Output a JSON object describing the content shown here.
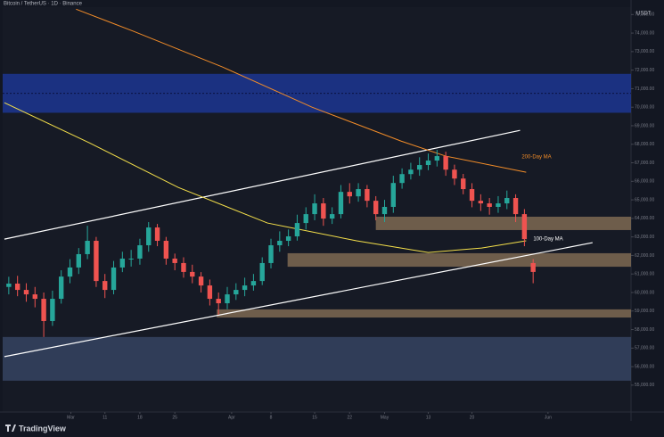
{
  "chart_data": {
    "type": "candlestick",
    "title": "Bitcoin / TetherUS · 1D · Binance",
    "corner_label": "USDT",
    "brand": "TradingView",
    "up_color": "#26a69a",
    "down_color": "#ef5350",
    "x": [
      0,
      1,
      2,
      3,
      4,
      5,
      6,
      7,
      8,
      9,
      10,
      11,
      12,
      13,
      14,
      15,
      16,
      17,
      18,
      19,
      20,
      21,
      22,
      23,
      24,
      25,
      26,
      27,
      28,
      29,
      30,
      31,
      32,
      33,
      34,
      35,
      36,
      37,
      38,
      39,
      40,
      41,
      42,
      43,
      44,
      45,
      46,
      47,
      48,
      49,
      50,
      51,
      52,
      53,
      54,
      55,
      56,
      57,
      58,
      59,
      60
    ],
    "open": [
      60300,
      60480,
      60140,
      59900,
      59660,
      58460,
      59660,
      60860,
      61350,
      62070,
      62790,
      60620,
      60140,
      61350,
      61830,
      61830,
      62550,
      63510,
      62790,
      61830,
      61590,
      61110,
      60860,
      60380,
      59660,
      59420,
      59900,
      60140,
      60380,
      60620,
      61590,
      62550,
      62790,
      63030,
      63750,
      64230,
      64810,
      63990,
      64230,
      65430,
      65190,
      65580,
      64950,
      64230,
      64620,
      65910,
      66390,
      66630,
      66880,
      67120,
      67360,
      66630,
      66150,
      65580,
      64950,
      64810,
      64620,
      64810,
      65100,
      64230,
      61590
    ],
    "high": [
      60850,
      60900,
      60500,
      60300,
      60000,
      60100,
      61200,
      61800,
      62400,
      63600,
      63000,
      61000,
      61700,
      62200,
      62300,
      62900,
      63800,
      63700,
      63000,
      62100,
      61900,
      61500,
      61100,
      60700,
      60000,
      60300,
      60500,
      60800,
      61000,
      61900,
      62900,
      63300,
      63400,
      64200,
      64600,
      65300,
      65100,
      64600,
      65800,
      65900,
      65900,
      65800,
      65200,
      65000,
      66300,
      66700,
      67000,
      67300,
      67500,
      67700,
      67600,
      66900,
      66400,
      65900,
      65300,
      65100,
      65200,
      65500,
      65300,
      64500,
      61800
    ],
    "low": [
      59900,
      59800,
      59500,
      59200,
      57600,
      58200,
      59400,
      60500,
      61000,
      61800,
      60300,
      59700,
      59900,
      61100,
      61400,
      61500,
      62200,
      62500,
      61500,
      61200,
      60800,
      60500,
      60000,
      59300,
      58800,
      59100,
      59600,
      59800,
      60100,
      60400,
      61300,
      62200,
      62500,
      62800,
      63400,
      63900,
      63600,
      63700,
      64000,
      64800,
      64900,
      64600,
      63900,
      63800,
      64300,
      65600,
      66100,
      66300,
      66600,
      66800,
      66300,
      65800,
      65300,
      64600,
      64400,
      64200,
      64300,
      64500,
      63800,
      62500,
      60500
    ],
    "close": [
      60480,
      60140,
      59900,
      59660,
      58460,
      59660,
      60860,
      61350,
      62070,
      62790,
      60620,
      60140,
      61350,
      61830,
      61830,
      62550,
      63510,
      62790,
      61830,
      61590,
      61110,
      60860,
      60380,
      59660,
      59420,
      59900,
      60140,
      60380,
      60620,
      61590,
      62550,
      62790,
      63030,
      63750,
      64230,
      64810,
      63990,
      64230,
      65430,
      65190,
      65580,
      64950,
      64230,
      64620,
      65910,
      66390,
      66630,
      66880,
      67120,
      67360,
      66630,
      66150,
      65580,
      64950,
      64810,
      64620,
      64810,
      65100,
      64230,
      62880,
      61110
    ],
    "xlim": [
      -0.7,
      71.2
    ],
    "xticks": [
      {
        "value": 7.1,
        "label": "Mar"
      },
      {
        "value": 11,
        "label": "11"
      },
      {
        "value": 15,
        "label": "18"
      },
      {
        "value": 19,
        "label": "25"
      },
      {
        "value": 25.5,
        "label": "Apr"
      },
      {
        "value": 30,
        "label": "8"
      },
      {
        "value": 35,
        "label": "15"
      },
      {
        "value": 39,
        "label": "22"
      },
      {
        "value": 43,
        "label": "May"
      },
      {
        "value": 48,
        "label": "13"
      },
      {
        "value": 53,
        "label": "20"
      },
      {
        "value": 61.7,
        "label": "Jun"
      }
    ],
    "ylim": [
      53550,
      75400
    ],
    "yticks": [
      {
        "value": 55000,
        "label": "55,000.00"
      },
      {
        "value": 56000,
        "label": "56,000.00"
      },
      {
        "value": 57000,
        "label": "57,000.00"
      },
      {
        "value": 58000,
        "label": "58,000.00"
      },
      {
        "value": 59000,
        "label": "59,000.00"
      },
      {
        "value": 60000,
        "label": "60,000.00"
      },
      {
        "value": 61000,
        "label": "61,000.00"
      },
      {
        "value": 62000,
        "label": "62,000.00"
      },
      {
        "value": 63000,
        "label": "63,000.00"
      },
      {
        "value": 64000,
        "label": "64,000.00"
      },
      {
        "value": 65000,
        "label": "65,000.00"
      },
      {
        "value": 66000,
        "label": "66,000.00"
      },
      {
        "value": 67000,
        "label": "67,000.00"
      },
      {
        "value": 68000,
        "label": "68,000.00"
      },
      {
        "value": 69000,
        "label": "69,000.00"
      },
      {
        "value": 70000,
        "label": "70,000.00"
      },
      {
        "value": 71000,
        "label": "71,000.00"
      },
      {
        "value": 72000,
        "label": "72,000.00"
      },
      {
        "value": 73000,
        "label": "73,000.00"
      },
      {
        "value": 74000,
        "label": "74,000.00"
      },
      {
        "value": 75000,
        "label": "75,000.00"
      }
    ],
    "zones": [
      {
        "color": "#1e3aa0",
        "x_start": -0.7,
        "low": 69700,
        "high": 71800
      },
      {
        "color": "#8c7458",
        "x_start": 42,
        "low": 63370,
        "high": 64090
      },
      {
        "color": "#8c7458",
        "x_start": 31.9,
        "low": 61390,
        "high": 62120
      },
      {
        "color": "#8c7458",
        "x_start": 23.8,
        "low": 58650,
        "high": 59090
      },
      {
        "color": "#3a4a6a",
        "x_start": -0.7,
        "low": 55240,
        "high": 57600
      }
    ],
    "channel_lines": [
      {
        "color": "#ffffff",
        "x": [
          -0.5,
          58.5
        ],
        "values": [
          62880,
          68750
        ]
      },
      {
        "color": "#ffffff",
        "x": [
          -0.5,
          66.8
        ],
        "values": [
          56540,
          62690
        ]
      }
    ],
    "overlays": [
      {
        "name": "200-Day MA",
        "color": "#f28c28",
        "x": [
          7.7,
          14.3,
          24.5,
          34.7,
          44.9,
          50,
          59.2
        ],
        "values": [
          75290,
          74090,
          72160,
          70000,
          68170,
          67360,
          66490
        ]
      },
      {
        "name": "100-Day MA",
        "color": "#f5e04a",
        "x": [
          -0.5,
          9.2,
          19.4,
          29.6,
          39.8,
          48,
          54.1,
          59.2
        ],
        "values": [
          70240,
          68080,
          65670,
          63750,
          62790,
          62160,
          62400,
          62790
        ]
      }
    ]
  }
}
